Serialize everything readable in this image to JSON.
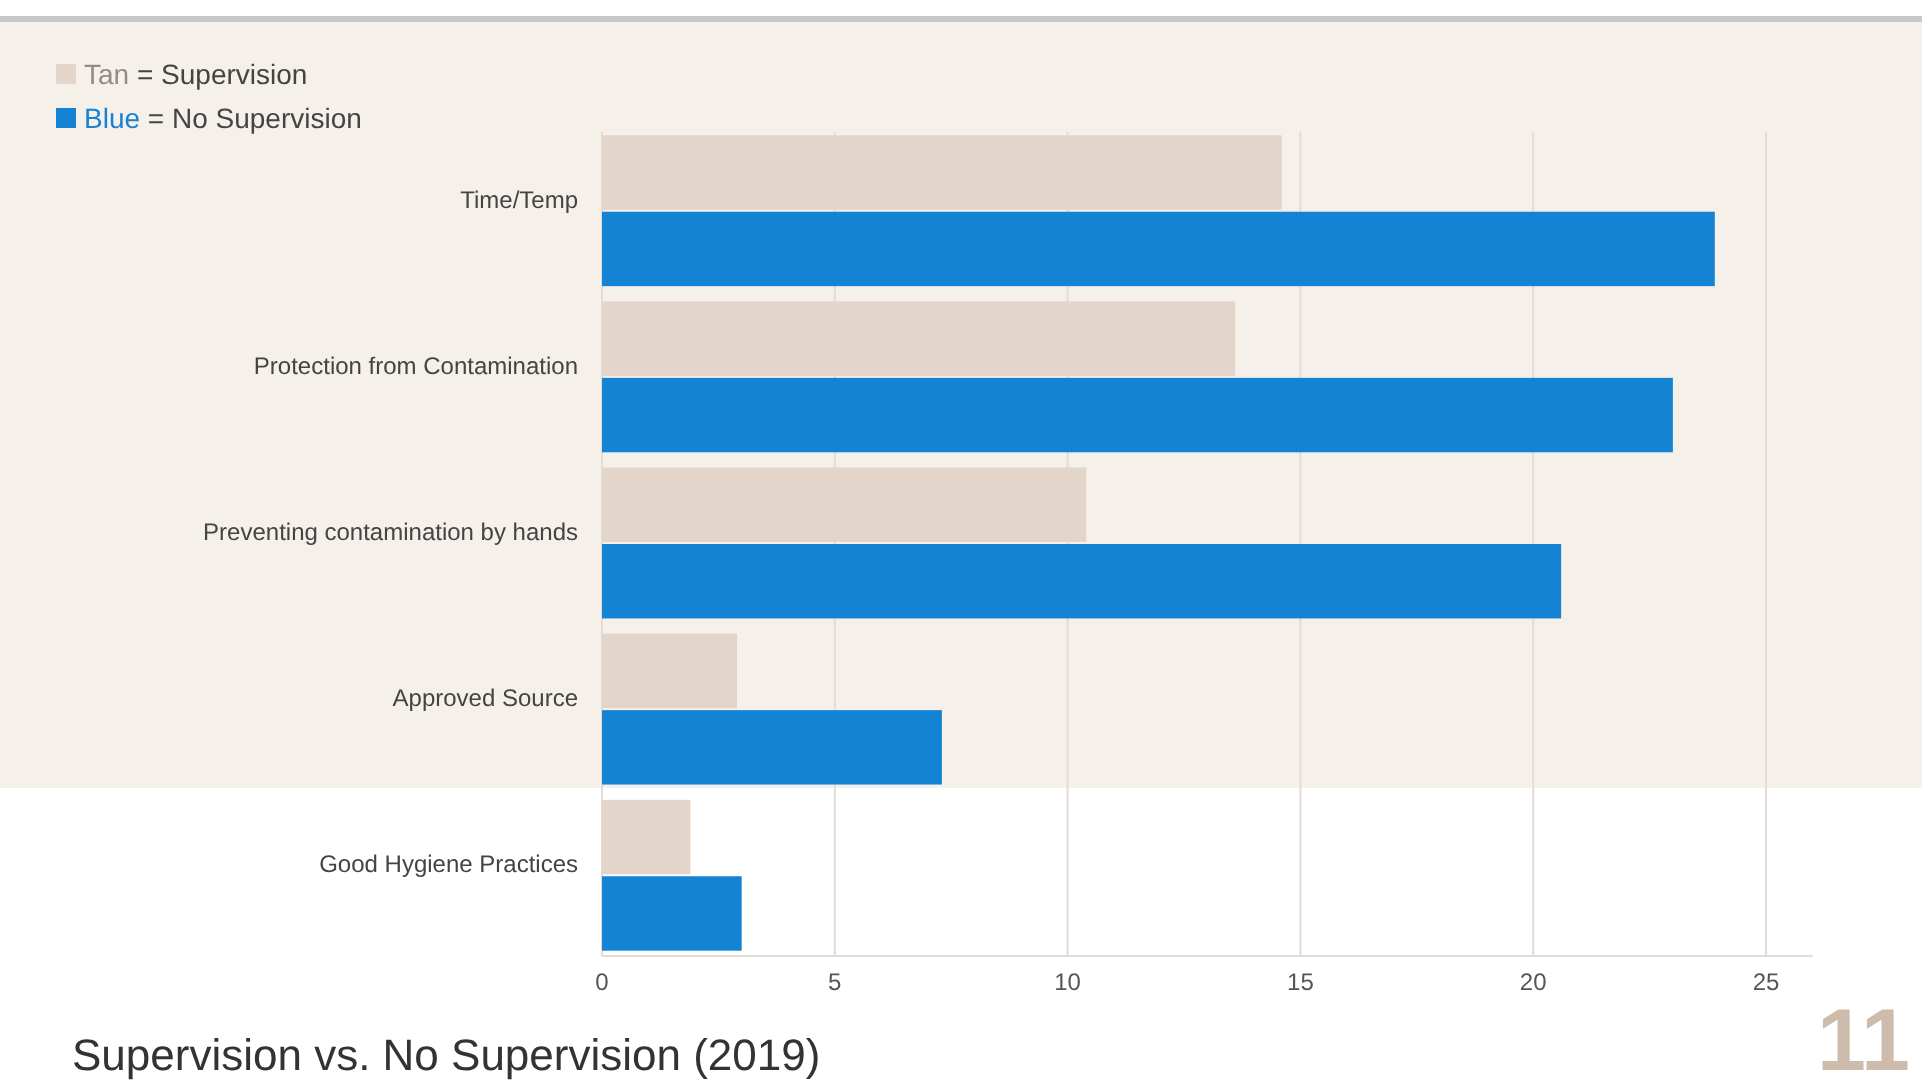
{
  "chart_data": {
    "type": "bar",
    "orientation": "horizontal",
    "title": "Supervision vs. No Supervision (2019)",
    "categories": [
      "Time/Temp",
      "Protection from Contamination",
      "Preventing contamination by hands",
      "Approved Source",
      "Good Hygiene Practices"
    ],
    "series": [
      {
        "name": "Tan = Supervision",
        "color": "#e3d5c9",
        "values": [
          14.6,
          13.6,
          10.4,
          2.9,
          1.9
        ]
      },
      {
        "name": "Blue = No Supervision",
        "color": "#1583d3",
        "values": [
          23.9,
          23.0,
          20.6,
          7.3,
          3.0
        ]
      }
    ],
    "xlim": [
      0,
      26
    ],
    "xticks": [
      0,
      5,
      10,
      15,
      20,
      25
    ],
    "grid": "x",
    "legend": "top left",
    "annotations": [
      "11"
    ]
  }
}
